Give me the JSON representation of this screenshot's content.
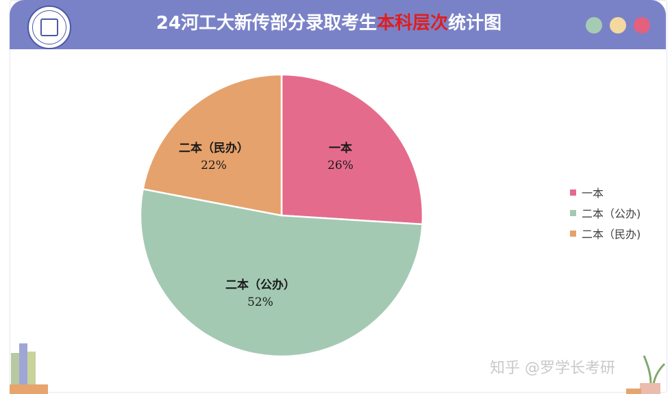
{
  "header": {
    "title_prefix": "24河工大新传部分录取考生",
    "title_highlight": "本科层次",
    "title_suffix": "统计图",
    "dots": [
      "#a6cbb4",
      "#f3d9a0",
      "#e3607f"
    ]
  },
  "chart_data": {
    "type": "pie",
    "categories": [
      "一本",
      "二本（公办）",
      "二本（民办）"
    ],
    "values": [
      26,
      52,
      22
    ],
    "value_suffix": "%",
    "colors": [
      "#e56b8d",
      "#a3c9b3",
      "#e6a26c"
    ],
    "legend": {
      "placement": "right",
      "entries": [
        "一本",
        "二本（公办)",
        "二本（民办)"
      ]
    }
  },
  "watermark": "知乎 @罗学长考研"
}
